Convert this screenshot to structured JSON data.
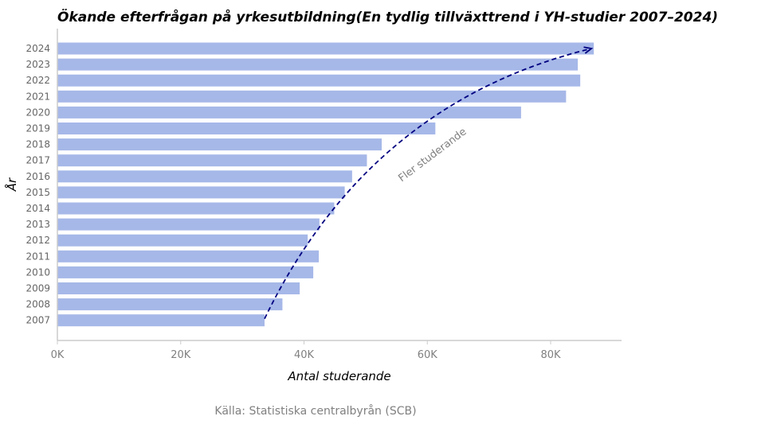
{
  "chart_data": {
    "type": "bar",
    "orientation": "horizontal",
    "title": "Ökande efterfrågan på yrkesutbildning(En tydlig tillväxttrend i YH-studier 2007–2024)",
    "xlabel": "Antal studerande",
    "ylabel": "År",
    "categories": [
      "2024",
      "2023",
      "2022",
      "2021",
      "2020",
      "2019",
      "2018",
      "2017",
      "2016",
      "2015",
      "2014",
      "2013",
      "2012",
      "2011",
      "2010",
      "2009",
      "2008",
      "2007"
    ],
    "values": [
      87000,
      84400,
      84800,
      82500,
      75200,
      61300,
      52600,
      50200,
      47800,
      46600,
      44900,
      42500,
      40600,
      42400,
      41500,
      39300,
      36500,
      33600
    ],
    "xlim": [
      0,
      91500
    ],
    "xticks": [
      0,
      20000,
      40000,
      60000,
      80000
    ],
    "xtick_labels": [
      "0K",
      "20K",
      "40K",
      "60K",
      "80K"
    ],
    "bar_color": "#a6b8e8",
    "arrow_color": "#000080",
    "grid": false,
    "annotation": {
      "text": "Fler studerande",
      "from": {
        "x": 33600,
        "category": "2007"
      },
      "to": {
        "x": 87000,
        "category": "2024"
      },
      "style": "dashed-curved-arrow"
    },
    "source": "Källa: Statistiska centralbyrån (SCB)"
  }
}
